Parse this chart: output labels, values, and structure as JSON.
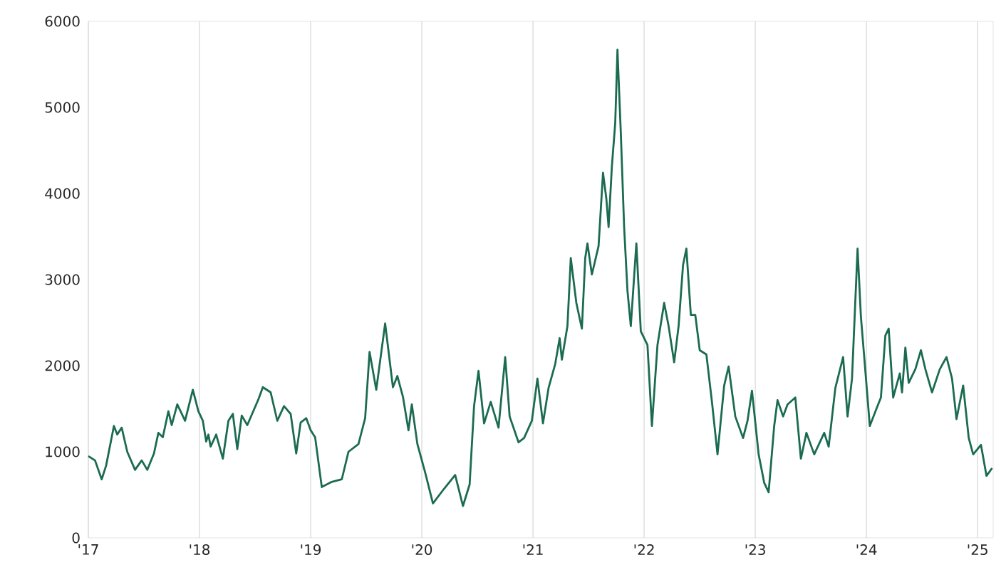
{
  "chart_data": {
    "type": "line",
    "x": [
      2017.0,
      2017.06,
      2017.12,
      2017.16,
      2017.23,
      2017.26,
      2017.3,
      2017.35,
      2017.42,
      2017.48,
      2017.53,
      2017.59,
      2017.63,
      2017.67,
      2017.72,
      2017.75,
      2017.8,
      2017.87,
      2017.94,
      2017.99,
      2018.03,
      2018.06,
      2018.08,
      2018.1,
      2018.15,
      2018.21,
      2018.26,
      2018.3,
      2018.34,
      2018.38,
      2018.43,
      2018.53,
      2018.57,
      2018.64,
      2018.7,
      2018.76,
      2018.82,
      2018.87,
      2018.91,
      2018.96,
      2019.0,
      2019.04,
      2019.1,
      2019.19,
      2019.28,
      2019.34,
      2019.43,
      2019.49,
      2019.53,
      2019.59,
      2019.67,
      2019.74,
      2019.78,
      2019.83,
      2019.88,
      2019.91,
      2019.96,
      2020.03,
      2020.1,
      2020.2,
      2020.3,
      2020.37,
      2020.43,
      2020.47,
      2020.51,
      2020.56,
      2020.62,
      2020.69,
      2020.75,
      2020.79,
      2020.87,
      2020.92,
      2020.99,
      2021.04,
      2021.09,
      2021.14,
      2021.2,
      2021.24,
      2021.26,
      2021.31,
      2021.34,
      2021.39,
      2021.44,
      2021.47,
      2021.49,
      2021.53,
      2021.59,
      2021.63,
      2021.66,
      2021.68,
      2021.71,
      2021.74,
      2021.76,
      2021.79,
      2021.82,
      2021.85,
      2021.88,
      2021.93,
      2021.97,
      2022.03,
      2022.07,
      2022.12,
      2022.18,
      2022.22,
      2022.27,
      2022.31,
      2022.35,
      2022.38,
      2022.42,
      2022.46,
      2022.5,
      2022.56,
      2022.61,
      2022.66,
      2022.72,
      2022.76,
      2022.82,
      2022.89,
      2022.93,
      2022.97,
      2023.03,
      2023.08,
      2023.12,
      2023.17,
      2023.2,
      2023.25,
      2023.29,
      2023.36,
      2023.41,
      2023.46,
      2023.53,
      2023.62,
      2023.66,
      2023.72,
      2023.79,
      2023.83,
      2023.87,
      2023.92,
      2023.95,
      2023.98,
      2024.03,
      2024.09,
      2024.13,
      2024.17,
      2024.2,
      2024.24,
      2024.3,
      2024.32,
      2024.35,
      2024.38,
      2024.44,
      2024.49,
      2024.53,
      2024.59,
      2024.66,
      2024.72,
      2024.77,
      2024.81,
      2024.87,
      2024.92,
      2024.96,
      2025.03,
      2025.08,
      2025.13
    ],
    "series": [
      {
        "color": "#1b6b52",
        "values": [
          950,
          900,
          680,
          840,
          1300,
          1200,
          1280,
          1000,
          790,
          900,
          790,
          980,
          1220,
          1170,
          1470,
          1310,
          1550,
          1360,
          1720,
          1470,
          1360,
          1120,
          1200,
          1060,
          1200,
          920,
          1360,
          1440,
          1030,
          1420,
          1310,
          1610,
          1750,
          1690,
          1360,
          1530,
          1440,
          980,
          1340,
          1390,
          1250,
          1170,
          590,
          650,
          680,
          1000,
          1090,
          1390,
          2160,
          1720,
          2490,
          1750,
          1880,
          1640,
          1250,
          1550,
          1090,
          760,
          400,
          570,
          730,
          370,
          620,
          1530,
          1940,
          1330,
          1580,
          1280,
          2100,
          1410,
          1110,
          1160,
          1360,
          1850,
          1330,
          1740,
          2020,
          2320,
          2070,
          2460,
          3250,
          2730,
          2430,
          3250,
          3420,
          3060,
          3390,
          4240,
          3940,
          3610,
          4320,
          4820,
          5670,
          4710,
          3610,
          2870,
          2460,
          3420,
          2400,
          2240,
          1300,
          2240,
          2730,
          2460,
          2040,
          2460,
          3170,
          3360,
          2590,
          2590,
          2180,
          2130,
          1580,
          970,
          1770,
          1990,
          1410,
          1160,
          1360,
          1710,
          970,
          640,
          530,
          1300,
          1600,
          1410,
          1550,
          1630,
          920,
          1220,
          970,
          1220,
          1060,
          1740,
          2100,
          1410,
          1850,
          3360,
          2570,
          2100,
          1300,
          1500,
          1630,
          2350,
          2430,
          1630,
          1910,
          1690,
          2210,
          1800,
          1960,
          2180,
          1960,
          1690,
          1960,
          2100,
          1850,
          1380,
          1770,
          1160,
          970,
          1080,
          720,
          810
        ]
      }
    ],
    "xlim": [
      2017.0,
      2025.14
    ],
    "xticks": [
      {
        "value": 2017,
        "label": "'17"
      },
      {
        "value": 2018,
        "label": "'18"
      },
      {
        "value": 2019,
        "label": "'19"
      },
      {
        "value": 2020,
        "label": "'20"
      },
      {
        "value": 2021,
        "label": "'21"
      },
      {
        "value": 2022,
        "label": "'22"
      },
      {
        "value": 2023,
        "label": "'23"
      },
      {
        "value": 2024,
        "label": "'24"
      },
      {
        "value": 2025,
        "label": "'25"
      }
    ],
    "ylim": [
      0,
      6000
    ],
    "yticks": [
      0,
      1000,
      2000,
      3000,
      4000,
      5000,
      6000
    ],
    "grid": "x",
    "marker": "none",
    "line_style": "solid"
  }
}
